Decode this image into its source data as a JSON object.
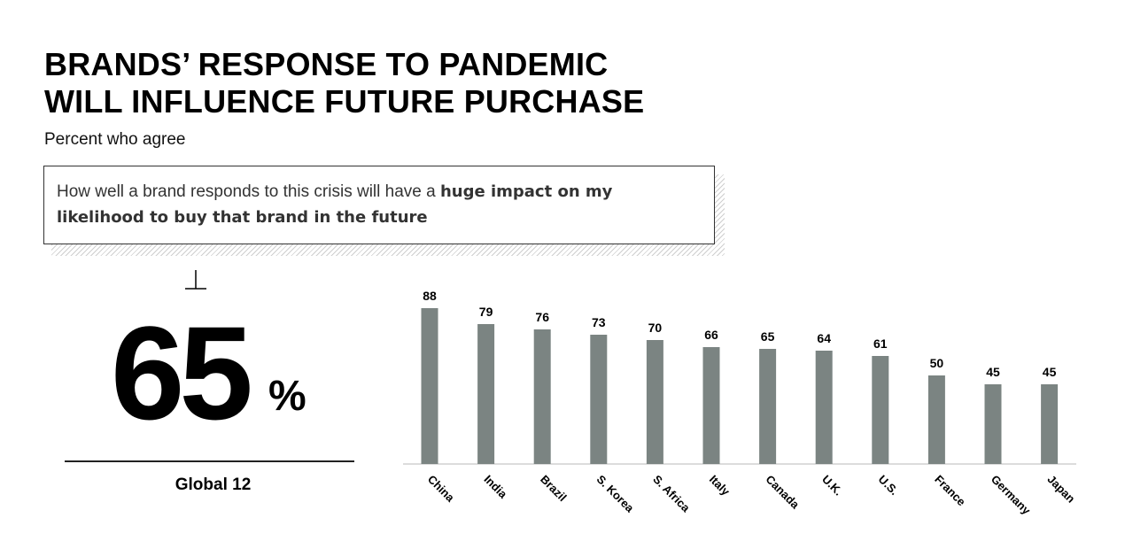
{
  "header": {
    "title_line1": "BRANDS’ RESPONSE TO PANDEMIC",
    "title_line2": "WILL INFLUENCE FUTURE PURCHASE",
    "subtitle": "Percent who agree"
  },
  "quote": {
    "text_plain": "How well a brand responds to this crisis will have a ",
    "text_bold": "huge impact on my likelihood to buy that brand in the future"
  },
  "global": {
    "value": "65",
    "unit": "%",
    "label": "Global 12"
  },
  "colors": {
    "bar": "#7b8482",
    "text": "#000000",
    "axis": "#d0d0d0"
  },
  "chart_data": {
    "type": "bar",
    "categories": [
      "China",
      "India",
      "Brazil",
      "S. Korea",
      "S. Africa",
      "Italy",
      "Canada",
      "U.K.",
      "U.S.",
      "France",
      "Germany",
      "Japan"
    ],
    "values": [
      88,
      79,
      76,
      73,
      70,
      66,
      65,
      64,
      61,
      50,
      45,
      45
    ],
    "ylim": [
      0,
      100
    ],
    "grid": false,
    "legend": "none",
    "data_labels": true
  }
}
